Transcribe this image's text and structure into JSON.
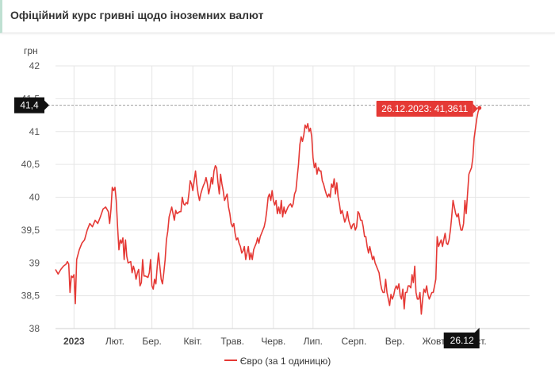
{
  "header": {
    "title": "Офіційний курс гривні щодо іноземних валют"
  },
  "chart_data": {
    "type": "line",
    "ylabel": "грн",
    "ylim": [
      38,
      42
    ],
    "yticks": [
      {
        "v": 38,
        "label": "38"
      },
      {
        "v": 38.5,
        "label": "38,5"
      },
      {
        "v": 39,
        "label": "39"
      },
      {
        "v": 39.5,
        "label": "39,5"
      },
      {
        "v": 40,
        "label": "40"
      },
      {
        "v": 40.5,
        "label": "40,5"
      },
      {
        "v": 41,
        "label": "41"
      },
      {
        "v": 41.5,
        "label": "41,5"
      },
      {
        "v": 42,
        "label": "42"
      }
    ],
    "xlim": [
      0,
      359
    ],
    "xticks": [
      {
        "v": 14,
        "label": "2023",
        "bold": true
      },
      {
        "v": 45,
        "label": "Лют."
      },
      {
        "v": 73,
        "label": "Бер."
      },
      {
        "v": 104,
        "label": "Квіт."
      },
      {
        "v": 134,
        "label": "Трав."
      },
      {
        "v": 165,
        "label": "Черв."
      },
      {
        "v": 195,
        "label": "Лип."
      },
      {
        "v": 226,
        "label": "Серп."
      },
      {
        "v": 257,
        "label": "Вер."
      },
      {
        "v": 287,
        "label": "Жовт."
      },
      {
        "v": 318,
        "label": "Лист."
      }
    ],
    "series": [
      {
        "name": "Євро (за 1 одиницю)",
        "color": "#e53935",
        "points": [
          [
            0,
            38.9
          ],
          [
            2,
            38.83
          ],
          [
            4,
            38.9
          ],
          [
            6,
            38.95
          ],
          [
            8,
            38.98
          ],
          [
            9,
            39.02
          ],
          [
            10,
            38.98
          ],
          [
            11,
            38.55
          ],
          [
            12,
            38.8
          ],
          [
            13,
            38.78
          ],
          [
            14,
            38.82
          ],
          [
            15,
            38.38
          ],
          [
            16,
            39.05
          ],
          [
            18,
            39.2
          ],
          [
            20,
            39.3
          ],
          [
            22,
            39.35
          ],
          [
            24,
            39.5
          ],
          [
            26,
            39.6
          ],
          [
            28,
            39.55
          ],
          [
            30,
            39.65
          ],
          [
            32,
            39.6
          ],
          [
            34,
            39.7
          ],
          [
            36,
            39.82
          ],
          [
            38,
            39.85
          ],
          [
            40,
            39.78
          ],
          [
            41,
            39.6
          ],
          [
            42,
            39.82
          ],
          [
            43,
            40.15
          ],
          [
            44,
            40.1
          ],
          [
            45,
            40.15
          ],
          [
            46,
            39.95
          ],
          [
            47,
            39.55
          ],
          [
            48,
            39.2
          ],
          [
            49,
            39.35
          ],
          [
            50,
            39.3
          ],
          [
            51,
            39.38
          ],
          [
            52,
            39.05
          ],
          [
            53,
            39.35
          ],
          [
            54,
            39.1
          ],
          [
            55,
            39.0
          ],
          [
            57,
            39.02
          ],
          [
            58,
            38.85
          ],
          [
            59,
            38.95
          ],
          [
            60,
            38.88
          ],
          [
            61,
            38.75
          ],
          [
            62,
            38.85
          ],
          [
            63,
            38.9
          ],
          [
            64,
            38.65
          ],
          [
            65,
            38.7
          ],
          [
            66,
            39.05
          ],
          [
            67,
            38.8
          ],
          [
            68,
            38.8
          ],
          [
            70,
            38.78
          ],
          [
            71,
            38.85
          ],
          [
            72,
            39.05
          ],
          [
            73,
            38.65
          ],
          [
            74,
            38.6
          ],
          [
            75,
            38.75
          ],
          [
            76,
            38.68
          ],
          [
            77,
            38.95
          ],
          [
            78,
            39.15
          ],
          [
            79,
            38.95
          ],
          [
            80,
            38.75
          ],
          [
            81,
            38.68
          ],
          [
            82,
            38.85
          ],
          [
            83,
            39.05
          ],
          [
            84,
            39.35
          ],
          [
            85,
            39.48
          ],
          [
            86,
            39.7
          ],
          [
            88,
            39.85
          ],
          [
            90,
            39.65
          ],
          [
            91,
            39.8
          ],
          [
            92,
            39.75
          ],
          [
            94,
            39.78
          ],
          [
            95,
            39.78
          ],
          [
            96,
            40.0
          ],
          [
            97,
            39.9
          ],
          [
            98,
            39.88
          ],
          [
            99,
            39.92
          ],
          [
            100,
            39.9
          ],
          [
            101,
            40.05
          ],
          [
            102,
            40.25
          ],
          [
            103,
            40.2
          ],
          [
            104,
            40.1
          ],
          [
            105,
            40.25
          ],
          [
            106,
            40.4
          ],
          [
            107,
            40.2
          ],
          [
            108,
            40.05
          ],
          [
            109,
            39.95
          ],
          [
            110,
            40.05
          ],
          [
            111,
            40.12
          ],
          [
            112,
            40.18
          ],
          [
            113,
            40.22
          ],
          [
            114,
            40.3
          ],
          [
            115,
            40.2
          ],
          [
            116,
            40.05
          ],
          [
            117,
            40.15
          ],
          [
            118,
            40.3
          ],
          [
            119,
            40.2
          ],
          [
            120,
            40.4
          ],
          [
            121,
            40.48
          ],
          [
            122,
            40.45
          ],
          [
            123,
            40.22
          ],
          [
            124,
            40.05
          ],
          [
            125,
            40.35
          ],
          [
            126,
            40.2
          ],
          [
            127,
            40.1
          ],
          [
            128,
            39.95
          ],
          [
            129,
            40.0
          ],
          [
            130,
            40.05
          ],
          [
            131,
            39.85
          ],
          [
            132,
            39.75
          ],
          [
            133,
            39.6
          ],
          [
            134,
            39.55
          ],
          [
            135,
            39.6
          ],
          [
            136,
            39.45
          ],
          [
            137,
            39.35
          ],
          [
            138,
            39.38
          ],
          [
            139,
            39.3
          ],
          [
            140,
            39.25
          ],
          [
            141,
            39.15
          ],
          [
            142,
            39.18
          ],
          [
            143,
            39.25
          ],
          [
            144,
            39.05
          ],
          [
            145,
            39.15
          ],
          [
            146,
            39.25
          ],
          [
            147,
            39.05
          ],
          [
            148,
            39.15
          ],
          [
            149,
            39.05
          ],
          [
            150,
            39.2
          ],
          [
            151,
            39.25
          ],
          [
            152,
            39.3
          ],
          [
            153,
            39.38
          ],
          [
            154,
            39.3
          ],
          [
            155,
            39.4
          ],
          [
            156,
            39.45
          ],
          [
            157,
            39.5
          ],
          [
            158,
            39.55
          ],
          [
            159,
            39.65
          ],
          [
            160,
            39.8
          ],
          [
            161,
            40.0
          ],
          [
            162,
            40.05
          ],
          [
            163,
            39.95
          ],
          [
            164,
            40.1
          ],
          [
            165,
            39.95
          ],
          [
            166,
            39.88
          ],
          [
            167,
            39.95
          ],
          [
            168,
            39.75
          ],
          [
            169,
            39.85
          ],
          [
            170,
            39.75
          ],
          [
            171,
            39.95
          ],
          [
            172,
            39.7
          ],
          [
            173,
            39.85
          ],
          [
            174,
            39.75
          ],
          [
            175,
            39.8
          ],
          [
            176,
            39.85
          ],
          [
            177,
            39.88
          ],
          [
            178,
            39.9
          ],
          [
            179,
            39.85
          ],
          [
            180,
            39.9
          ],
          [
            181,
            40.05
          ],
          [
            182,
            40.1
          ],
          [
            183,
            40.3
          ],
          [
            184,
            40.5
          ],
          [
            185,
            40.8
          ],
          [
            186,
            40.92
          ],
          [
            187,
            40.85
          ],
          [
            188,
            40.95
          ],
          [
            189,
            41.1
          ],
          [
            190,
            41.05
          ],
          [
            191,
            41.12
          ],
          [
            192,
            41.0
          ],
          [
            193,
            41.05
          ],
          [
            194,
            40.92
          ],
          [
            195,
            40.6
          ],
          [
            196,
            40.45
          ],
          [
            197,
            40.52
          ],
          [
            198,
            40.35
          ],
          [
            199,
            40.45
          ],
          [
            200,
            40.4
          ],
          [
            201,
            40.4
          ],
          [
            202,
            40.25
          ],
          [
            203,
            40.2
          ],
          [
            204,
            40.12
          ],
          [
            205,
            40.05
          ],
          [
            206,
            40.0
          ],
          [
            207,
            40.05
          ],
          [
            208,
            40.0
          ],
          [
            209,
            40.2
          ],
          [
            210,
            40.15
          ],
          [
            211,
            40.28
          ],
          [
            212,
            40.05
          ],
          [
            213,
            40.22
          ],
          [
            214,
            40.0
          ],
          [
            215,
            39.9
          ],
          [
            216,
            39.75
          ],
          [
            217,
            39.8
          ],
          [
            218,
            39.72
          ],
          [
            219,
            39.62
          ],
          [
            220,
            39.68
          ],
          [
            221,
            39.78
          ],
          [
            222,
            39.65
          ],
          [
            223,
            39.58
          ],
          [
            224,
            39.52
          ],
          [
            225,
            39.58
          ],
          [
            226,
            39.6
          ],
          [
            227,
            39.5
          ],
          [
            228,
            39.55
          ],
          [
            229,
            39.78
          ],
          [
            230,
            39.75
          ],
          [
            231,
            39.65
          ],
          [
            232,
            39.65
          ],
          [
            233,
            39.55
          ],
          [
            234,
            39.4
          ],
          [
            235,
            39.4
          ],
          [
            236,
            39.25
          ],
          [
            237,
            39.15
          ],
          [
            238,
            39.25
          ],
          [
            239,
            39.15
          ],
          [
            240,
            39.05
          ],
          [
            241,
            39.1
          ],
          [
            242,
            39.0
          ],
          [
            243,
            38.95
          ],
          [
            244,
            38.9
          ],
          [
            245,
            38.85
          ],
          [
            246,
            38.7
          ],
          [
            247,
            38.6
          ],
          [
            248,
            38.55
          ],
          [
            249,
            38.55
          ],
          [
            250,
            38.75
          ],
          [
            251,
            38.55
          ],
          [
            252,
            38.45
          ],
          [
            253,
            38.35
          ],
          [
            254,
            38.52
          ],
          [
            255,
            38.45
          ],
          [
            256,
            38.5
          ],
          [
            257,
            38.6
          ],
          [
            258,
            38.65
          ],
          [
            259,
            38.6
          ],
          [
            260,
            38.68
          ],
          [
            261,
            38.5
          ],
          [
            262,
            38.45
          ],
          [
            263,
            38.6
          ],
          [
            264,
            38.3
          ],
          [
            265,
            38.55
          ],
          [
            266,
            38.55
          ],
          [
            267,
            38.65
          ],
          [
            268,
            38.65
          ],
          [
            269,
            38.62
          ],
          [
            270,
            38.82
          ],
          [
            271,
            38.7
          ],
          [
            272,
            38.95
          ],
          [
            273,
            38.55
          ],
          [
            274,
            38.45
          ],
          [
            275,
            38.45
          ],
          [
            276,
            38.55
          ],
          [
            277,
            38.22
          ],
          [
            278,
            38.45
          ],
          [
            279,
            38.6
          ],
          [
            280,
            38.55
          ],
          [
            281,
            38.65
          ],
          [
            282,
            38.52
          ],
          [
            283,
            38.45
          ],
          [
            284,
            38.5
          ],
          [
            285,
            38.55
          ],
          [
            286,
            38.55
          ],
          [
            287,
            38.65
          ],
          [
            288,
            38.75
          ],
          [
            289,
            39.4
          ],
          [
            290,
            39.25
          ],
          [
            291,
            39.3
          ],
          [
            292,
            39.35
          ],
          [
            293,
            39.25
          ],
          [
            294,
            39.35
          ],
          [
            295,
            39.45
          ],
          [
            296,
            39.3
          ],
          [
            297,
            39.28
          ],
          [
            298,
            39.35
          ],
          [
            299,
            39.5
          ],
          [
            300,
            39.7
          ],
          [
            301,
            39.95
          ],
          [
            302,
            39.85
          ],
          [
            303,
            39.75
          ],
          [
            304,
            39.7
          ],
          [
            305,
            39.75
          ],
          [
            306,
            39.6
          ],
          [
            307,
            39.5
          ],
          [
            308,
            39.5
          ],
          [
            309,
            39.6
          ],
          [
            310,
            39.95
          ],
          [
            311,
            39.75
          ],
          [
            312,
            40.05
          ],
          [
            313,
            40.35
          ],
          [
            314,
            40.4
          ],
          [
            315,
            40.45
          ],
          [
            316,
            40.6
          ],
          [
            317,
            40.9
          ],
          [
            318,
            41.05
          ],
          [
            319,
            41.2
          ],
          [
            320,
            41.3
          ],
          [
            321,
            41.36
          ]
        ]
      }
    ],
    "crosshair": {
      "y": 41.4,
      "label": "41,4"
    },
    "tooltip": {
      "x": 321,
      "text": "26.12.2023: 41,3611"
    },
    "xcursor": {
      "x": 321,
      "label": "26.12"
    },
    "legend": {
      "label": "Євро (за 1 одиницю)",
      "position": "bottom"
    },
    "grid": true
  }
}
